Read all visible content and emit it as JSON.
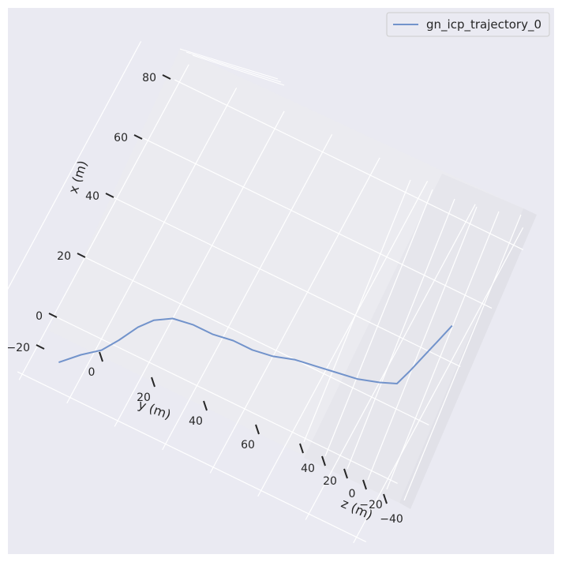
{
  "chart_data": {
    "type": "line",
    "projection": "3d",
    "legend": {
      "placement": "top-right",
      "entries": [
        "gn_icp_trajectory_0"
      ]
    },
    "axes": {
      "x": {
        "label": "x (m)",
        "ticks": [
          "−20",
          "0",
          "20",
          "40",
          "60",
          "80"
        ],
        "range": [
          -20,
          88
        ]
      },
      "y": {
        "label": "y (m)",
        "ticks": [
          "0",
          "20",
          "40",
          "60"
        ],
        "range": [
          -15,
          75
        ]
      },
      "z": {
        "label": "z (m)",
        "ticks": [
          "40",
          "20",
          "0",
          "−20",
          "−40"
        ],
        "range": [
          -45,
          48
        ]
      }
    },
    "series": [
      {
        "name": "gn_icp_trajectory_0",
        "color": "#7293cb",
        "points": [
          {
            "x": -12,
            "y": 5
          },
          {
            "x": -7,
            "y": 8
          },
          {
            "x": -3,
            "y": 11
          },
          {
            "x": 2,
            "y": 13
          },
          {
            "x": 8,
            "y": 15
          },
          {
            "x": 12,
            "y": 17
          },
          {
            "x": 15,
            "y": 20
          },
          {
            "x": 16,
            "y": 24
          },
          {
            "x": 16,
            "y": 28
          },
          {
            "x": 17,
            "y": 32
          },
          {
            "x": 17,
            "y": 36
          },
          {
            "x": 18,
            "y": 40
          },
          {
            "x": 20,
            "y": 44
          },
          {
            "x": 21,
            "y": 48
          },
          {
            "x": 22,
            "y": 52
          },
          {
            "x": 23,
            "y": 56
          },
          {
            "x": 25,
            "y": 60
          },
          {
            "x": 27,
            "y": 63
          },
          {
            "x": 32,
            "y": 64
          },
          {
            "x": 38,
            "y": 65
          },
          {
            "x": 44,
            "y": 66
          },
          {
            "x": 50,
            "y": 67
          }
        ]
      }
    ],
    "grid": true,
    "colors": {
      "figure_background": "#eaeaf2",
      "pane_floor": "#ebebf0",
      "pane_side": "#e3e3ea",
      "grid": "#ffffff",
      "text": "#262626",
      "line": "#7293cb"
    }
  }
}
